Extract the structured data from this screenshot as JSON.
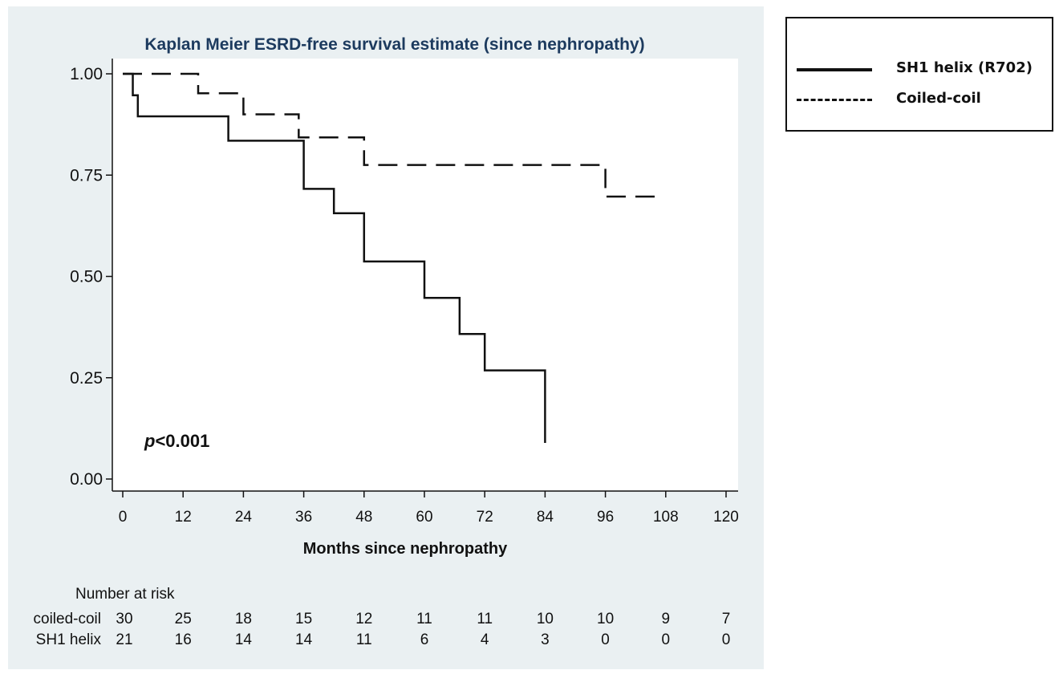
{
  "chart_data": {
    "type": "line",
    "title": "Kaplan Meier ESRD-free survival estimate (since nephropathy)",
    "xlabel": "Months since nephropathy",
    "ylabel": "",
    "xlim": [
      0,
      120
    ],
    "ylim": [
      0,
      1
    ],
    "x_ticks": [
      "0",
      "12",
      "24",
      "36",
      "48",
      "60",
      "72",
      "84",
      "96",
      "108",
      "120"
    ],
    "y_ticks": [
      "0.00",
      "0.25",
      "0.50",
      "0.75",
      "1.00"
    ],
    "annotation": {
      "italic": "p",
      "rest": "<0.001"
    },
    "legend_position": "top-right outside",
    "series": [
      {
        "name": "SH1 helix (R702)",
        "style": "solid",
        "step_points": [
          [
            0,
            1.0
          ],
          [
            2,
            0.947
          ],
          [
            3,
            0.895
          ],
          [
            21,
            0.835
          ],
          [
            36,
            0.716
          ],
          [
            42,
            0.656
          ],
          [
            48,
            0.537
          ],
          [
            60,
            0.447
          ],
          [
            67,
            0.358
          ],
          [
            72,
            0.268
          ],
          [
            84,
            0.089
          ]
        ]
      },
      {
        "name": "Coiled-coil",
        "style": "dashed",
        "step_points": [
          [
            0,
            1.0
          ],
          [
            15,
            0.952
          ],
          [
            24,
            0.9
          ],
          [
            35,
            0.843
          ],
          [
            48,
            0.775
          ],
          [
            96,
            0.697
          ],
          [
            107,
            0.697
          ]
        ]
      }
    ],
    "risk_table": {
      "title": "Number at risk",
      "rows": [
        {
          "label": "coiled-coil",
          "values": [
            "30",
            "25",
            "18",
            "15",
            "12",
            "11",
            "11",
            "10",
            "10",
            "9",
            "7"
          ]
        },
        {
          "label": "SH1 helix",
          "values": [
            "21",
            "16",
            "14",
            "14",
            "11",
            "6",
            "4",
            "3",
            "0",
            "0",
            "0"
          ]
        }
      ]
    }
  }
}
